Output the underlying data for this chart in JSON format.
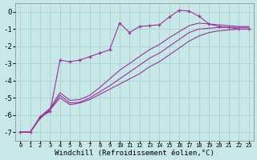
{
  "bg_color": "#c8e8e8",
  "grid_color": "#a8d0d0",
  "line_color": "#993399",
  "xlabel": "Windchill (Refroidissement éolien,°C)",
  "xlabel_fontsize": 6.5,
  "ylim": [
    -7.5,
    0.5
  ],
  "xlim": [
    -0.5,
    23.5
  ],
  "yticks": [
    0,
    -1,
    -2,
    -3,
    -4,
    -5,
    -6,
    -7
  ],
  "xticks": [
    0,
    1,
    2,
    3,
    4,
    5,
    6,
    7,
    8,
    9,
    10,
    11,
    12,
    13,
    14,
    15,
    16,
    17,
    18,
    19,
    20,
    21,
    22,
    23
  ],
  "series": [
    {
      "x": [
        0,
        1,
        2,
        3,
        4,
        5,
        6,
        7,
        8,
        9,
        10,
        11,
        12,
        13,
        14,
        15,
        16,
        17,
        18,
        19,
        20,
        21,
        22,
        23
      ],
      "y": [
        -7.0,
        -7.0,
        -6.1,
        -5.8,
        -2.8,
        -2.9,
        -2.8,
        -2.6,
        -2.4,
        -2.2,
        -0.65,
        -1.2,
        -0.85,
        -0.8,
        -0.75,
        -0.3,
        0.1,
        0.05,
        -0.25,
        -0.7,
        -0.85,
        -0.9,
        -1.0,
        -1.0
      ],
      "marker": "+"
    },
    {
      "x": [
        0,
        1,
        2,
        3,
        4,
        5,
        6,
        7,
        8,
        9,
        10,
        11,
        12,
        13,
        14,
        15,
        16,
        17,
        18,
        19,
        20,
        21,
        22,
        23
      ],
      "y": [
        -7.0,
        -7.0,
        -6.2,
        -5.7,
        -5.0,
        -5.4,
        -5.3,
        -5.1,
        -4.8,
        -4.5,
        -4.2,
        -3.9,
        -3.6,
        -3.2,
        -2.9,
        -2.5,
        -2.1,
        -1.7,
        -1.4,
        -1.2,
        -1.1,
        -1.05,
        -1.0,
        -1.0
      ],
      "marker": null
    },
    {
      "x": [
        0,
        1,
        2,
        3,
        4,
        5,
        6,
        7,
        8,
        9,
        10,
        11,
        12,
        13,
        14,
        15,
        16,
        17,
        18,
        19,
        20,
        21,
        22,
        23
      ],
      "y": [
        -7.0,
        -7.0,
        -6.15,
        -5.65,
        -4.85,
        -5.3,
        -5.25,
        -5.0,
        -4.65,
        -4.3,
        -3.9,
        -3.5,
        -3.1,
        -2.7,
        -2.4,
        -2.0,
        -1.6,
        -1.2,
        -1.0,
        -0.95,
        -0.9,
        -0.9,
        -0.9,
        -0.9
      ],
      "marker": null
    },
    {
      "x": [
        0,
        1,
        2,
        3,
        4,
        5,
        6,
        7,
        8,
        9,
        10,
        11,
        12,
        13,
        14,
        15,
        16,
        17,
        18,
        19,
        20,
        21,
        22,
        23
      ],
      "y": [
        -7.0,
        -7.0,
        -6.1,
        -5.6,
        -4.7,
        -5.15,
        -5.1,
        -4.85,
        -4.4,
        -3.9,
        -3.4,
        -3.0,
        -2.6,
        -2.2,
        -1.9,
        -1.5,
        -1.15,
        -0.8,
        -0.65,
        -0.7,
        -0.75,
        -0.8,
        -0.85,
        -0.85
      ],
      "marker": null
    }
  ]
}
